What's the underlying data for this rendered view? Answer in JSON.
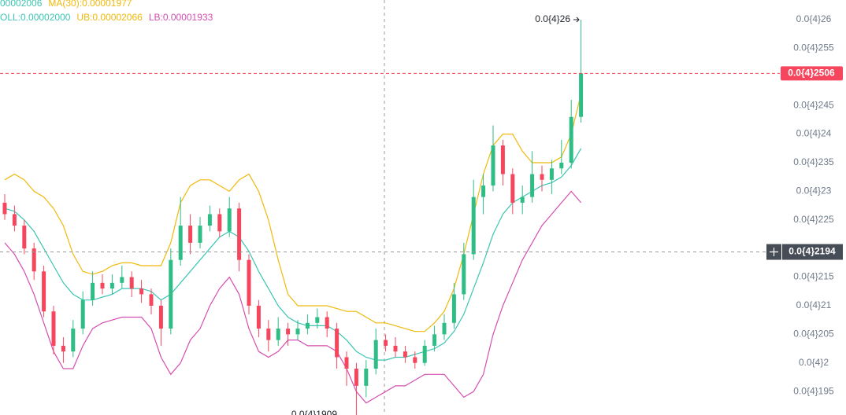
{
  "chart_data": {
    "type": "candlestick",
    "legend": [
      [
        {
          "text": "00002006",
          "color": "#3cc5b3"
        },
        {
          "text": "MA(30):0.00001977",
          "color": "#f0b90b"
        }
      ],
      [
        {
          "text": "OLL:0.00002000",
          "color": "#3cc5b3"
        },
        {
          "text": "UB:0.00002066",
          "color": "#f0b90b"
        },
        {
          "text": "LB:0.00001933",
          "color": "#d44fb0"
        }
      ]
    ],
    "up_color": "#2ebd85",
    "down_color": "#f6465d",
    "candles": [
      [
        2.28e-05,
        2.295e-05,
        2.25e-05,
        2.26e-05
      ],
      [
        2.26e-05,
        2.275e-05,
        2.23e-05,
        2.24e-05
      ],
      [
        2.24e-05,
        2.25e-05,
        2.19e-05,
        2.2e-05
      ],
      [
        2.2e-05,
        2.21e-05,
        2.145e-05,
        2.16e-05
      ],
      [
        2.16e-05,
        2.17e-05,
        2.08e-05,
        2.09e-05
      ],
      [
        2.09e-05,
        2.1e-05,
        2.015e-05,
        2.03e-05
      ],
      [
        2.03e-05,
        2.045e-05,
        2e-05,
        2.02e-05
      ],
      [
        2.02e-05,
        2.075e-05,
        2.01e-05,
        2.06e-05
      ],
      [
        2.06e-05,
        2.125e-05,
        2.05e-05,
        2.11e-05
      ],
      [
        2.11e-05,
        2.16e-05,
        2.1e-05,
        2.14e-05
      ],
      [
        2.14e-05,
        2.155e-05,
        2.12e-05,
        2.13e-05
      ],
      [
        2.13e-05,
        2.155e-05,
        2.12e-05,
        2.14e-05
      ],
      [
        2.14e-05,
        2.17e-05,
        2.13e-05,
        2.15e-05
      ],
      [
        2.15e-05,
        2.16e-05,
        2.115e-05,
        2.13e-05
      ],
      [
        2.13e-05,
        2.145e-05,
        2.105e-05,
        2.12e-05
      ],
      [
        2.12e-05,
        2.13e-05,
        2.085e-05,
        2.1e-05
      ],
      [
        2.1e-05,
        2.11e-05,
        2.03e-05,
        2.06e-05
      ],
      [
        2.06e-05,
        2.2e-05,
        2.05e-05,
        2.18e-05
      ],
      [
        2.18e-05,
        2.29e-05,
        2.17e-05,
        2.24e-05
      ],
      [
        2.24e-05,
        2.26e-05,
        2.19e-05,
        2.21e-05
      ],
      [
        2.21e-05,
        2.255e-05,
        2.2e-05,
        2.24e-05
      ],
      [
        2.24e-05,
        2.275e-05,
        2.23e-05,
        2.26e-05
      ],
      [
        2.26e-05,
        2.27e-05,
        2.22e-05,
        2.23e-05
      ],
      [
        2.23e-05,
        2.29e-05,
        2.22e-05,
        2.27e-05
      ],
      [
        2.27e-05,
        2.28e-05,
        2.16e-05,
        2.18e-05
      ],
      [
        2.18e-05,
        2.19e-05,
        2.085e-05,
        2.1e-05
      ],
      [
        2.1e-05,
        2.11e-05,
        2.045e-05,
        2.06e-05
      ],
      [
        2.06e-05,
        2.075e-05,
        2.02e-05,
        2.04e-05
      ],
      [
        2.04e-05,
        2.08e-05,
        2.03e-05,
        2.06e-05
      ],
      [
        2.06e-05,
        2.07e-05,
        2.03e-05,
        2.05e-05
      ],
      [
        2.05e-05,
        2.075e-05,
        2.04e-05,
        2.06e-05
      ],
      [
        2.06e-05,
        2.085e-05,
        2.05e-05,
        2.07e-05
      ],
      [
        2.07e-05,
        2.095e-05,
        2.06e-05,
        2.08e-05
      ],
      [
        2.08e-05,
        2.09e-05,
        2.045e-05,
        2.06e-05
      ],
      [
        2.06e-05,
        2.07e-05,
        1.99e-05,
        2.01e-05
      ],
      [
        2.01e-05,
        2.02e-05,
        1.96e-05,
        1.99e-05
      ],
      [
        1.99e-05,
        2e-05,
        1.909e-05,
        1.96e-05
      ],
      [
        1.96e-05,
        2.005e-05,
        1.94e-05,
        1.99e-05
      ],
      [
        1.99e-05,
        2.06e-05,
        1.98e-05,
        2.04e-05
      ],
      [
        2.04e-05,
        2.05e-05,
        2.02e-05,
        2.03e-05
      ],
      [
        2.03e-05,
        2.045e-05,
        2.01e-05,
        2.02e-05
      ],
      [
        2.02e-05,
        2.03e-05,
        2e-05,
        2.01e-05
      ],
      [
        2.01e-05,
        2.02e-05,
        1.99e-05,
        2e-05
      ],
      [
        2e-05,
        2.04e-05,
        1.995e-05,
        2.03e-05
      ],
      [
        2.03e-05,
        2.065e-05,
        2.02e-05,
        2.05e-05
      ],
      [
        2.05e-05,
        2.085e-05,
        2.04e-05,
        2.07e-05
      ],
      [
        2.07e-05,
        2.14e-05,
        2.06e-05,
        2.12e-05
      ],
      [
        2.12e-05,
        2.21e-05,
        2.11e-05,
        2.19e-05
      ],
      [
        2.19e-05,
        2.32e-05,
        2.18e-05,
        2.29e-05
      ],
      [
        2.29e-05,
        2.33e-05,
        2.26e-05,
        2.31e-05
      ],
      [
        2.31e-05,
        2.415e-05,
        2.3e-05,
        2.38e-05
      ],
      [
        2.38e-05,
        2.39e-05,
        2.31e-05,
        2.33e-05
      ],
      [
        2.33e-05,
        2.34e-05,
        2.26e-05,
        2.28e-05
      ],
      [
        2.28e-05,
        2.31e-05,
        2.26e-05,
        2.29e-05
      ],
      [
        2.29e-05,
        2.37e-05,
        2.28e-05,
        2.33e-05
      ],
      [
        2.33e-05,
        2.345e-05,
        2.3e-05,
        2.32e-05
      ],
      [
        2.32e-05,
        2.355e-05,
        2.295e-05,
        2.34e-05
      ],
      [
        2.34e-05,
        2.39e-05,
        2.33e-05,
        2.35e-05
      ],
      [
        2.35e-05,
        2.46e-05,
        2.34e-05,
        2.43e-05
      ],
      [
        2.43e-05,
        2.6e-05,
        2.42e-05,
        2.506e-05
      ]
    ],
    "series": [
      {
        "color": "#f0b90b",
        "values": [
          2.32e-05,
          2.33e-05,
          2.32e-05,
          2.3e-05,
          2.29e-05,
          2.27e-05,
          2.24e-05,
          2.19e-05,
          2.16e-05,
          2.155e-05,
          2.16e-05,
          2.17e-05,
          2.175e-05,
          2.175e-05,
          2.17e-05,
          2.17e-05,
          2.17e-05,
          2.21e-05,
          2.28e-05,
          2.31e-05,
          2.32e-05,
          2.32e-05,
          2.31e-05,
          2.3e-05,
          2.32e-05,
          2.33e-05,
          2.3e-05,
          2.25e-05,
          2.18e-05,
          2.12e-05,
          2.1e-05,
          2.1e-05,
          2.1e-05,
          2.1e-05,
          2.095e-05,
          2.09e-05,
          2.09e-05,
          2.08e-05,
          2.07e-05,
          2.07e-05,
          2.065e-05,
          2.06e-05,
          2.055e-05,
          2.055e-05,
          2.07e-05,
          2.09e-05,
          2.13e-05,
          2.19e-05,
          2.26e-05,
          2.33e-05,
          2.38e-05,
          2.4e-05,
          2.4e-05,
          2.37e-05,
          2.35e-05,
          2.35e-05,
          2.35e-05,
          2.36e-05,
          2.4e-05,
          2.47e-05
        ]
      },
      {
        "color": "#3cc5b3",
        "values": [
          2.27e-05,
          2.265e-05,
          2.25e-05,
          2.23e-05,
          2.2e-05,
          2.17e-05,
          2.14e-05,
          2.12e-05,
          2.11e-05,
          2.11e-05,
          2.115e-05,
          2.12e-05,
          2.13e-05,
          2.13e-05,
          2.13e-05,
          2.125e-05,
          2.11e-05,
          2.12e-05,
          2.14e-05,
          2.16e-05,
          2.18e-05,
          2.2e-05,
          2.22e-05,
          2.23e-05,
          2.22e-05,
          2.195e-05,
          2.16e-05,
          2.13e-05,
          2.1e-05,
          2.08e-05,
          2.07e-05,
          2.065e-05,
          2.065e-05,
          2.065e-05,
          2.055e-05,
          2.04e-05,
          2.02e-05,
          2.01e-05,
          2.005e-05,
          2.005e-05,
          2.01e-05,
          2.01e-05,
          2.015e-05,
          2.02e-05,
          2.025e-05,
          2.035e-05,
          2.055e-05,
          2.085e-05,
          2.13e-05,
          2.175e-05,
          2.225e-05,
          2.26e-05,
          2.28e-05,
          2.29e-05,
          2.3e-05,
          2.31e-05,
          2.315e-05,
          2.325e-05,
          2.345e-05,
          2.375e-05
        ]
      },
      {
        "color": "#d44fb0",
        "values": [
          2.21e-05,
          2.19e-05,
          2.16e-05,
          2.12e-05,
          2.07e-05,
          2.02e-05,
          1.99e-05,
          1.99e-05,
          2.03e-05,
          2.06e-05,
          2.07e-05,
          2.075e-05,
          2.08e-05,
          2.08e-05,
          2.08e-05,
          2.06e-05,
          2.01e-05,
          1.98e-05,
          2e-05,
          2.04e-05,
          2.06e-05,
          2.1e-05,
          2.13e-05,
          2.15e-05,
          2.12e-05,
          2.06e-05,
          2.02e-05,
          2.01e-05,
          2.02e-05,
          2.04e-05,
          2.04e-05,
          2.03e-05,
          2.03e-05,
          2.03e-05,
          2.02e-05,
          1.99e-05,
          1.95e-05,
          1.93e-05,
          1.94e-05,
          1.95e-05,
          1.96e-05,
          1.96e-05,
          1.97e-05,
          1.98e-05,
          1.98e-05,
          1.98e-05,
          1.96e-05,
          1.94e-05,
          1.95e-05,
          1.98e-05,
          2.05e-05,
          2.1e-05,
          2.14e-05,
          2.18e-05,
          2.21e-05,
          2.24e-05,
          2.26e-05,
          2.28e-05,
          2.3e-05,
          2.28e-05
        ]
      }
    ],
    "ylim": [
      1.909e-05,
      2.6343e-05
    ],
    "yticks": [
      {
        "value": 1.95e-05,
        "label": "0.0{4}195"
      },
      {
        "value": 2e-05,
        "label": "0.0{4}2"
      },
      {
        "value": 2.05e-05,
        "label": "0.0{4}205"
      },
      {
        "value": 2.1e-05,
        "label": "0.0{4}21"
      },
      {
        "value": 2.15e-05,
        "label": "0.0{4}215"
      },
      {
        "value": 2.25e-05,
        "label": "0.0{4}225"
      },
      {
        "value": 2.3e-05,
        "label": "0.0{4}23"
      },
      {
        "value": 2.35e-05,
        "label": "0.0{4}235"
      },
      {
        "value": 2.4e-05,
        "label": "0.0{4}24"
      },
      {
        "value": 2.45e-05,
        "label": "0.0{4}245"
      },
      {
        "value": 2.55e-05,
        "label": "0.0{4}255"
      },
      {
        "value": 2.6e-05,
        "label": "0.0{4}26"
      }
    ],
    "last_price": {
      "value": 2.506e-05,
      "label": "0.0{4}2506",
      "color": "#f6465d"
    },
    "crosshair_price": {
      "value": 2.194e-05,
      "label": "0.0{4}2194",
      "color": "#474d57"
    },
    "high_label": {
      "value": 2.6e-05,
      "label": "0.0{4}26"
    },
    "low_label": {
      "value": 1.909e-05,
      "label": "0.0{4}1909"
    }
  }
}
